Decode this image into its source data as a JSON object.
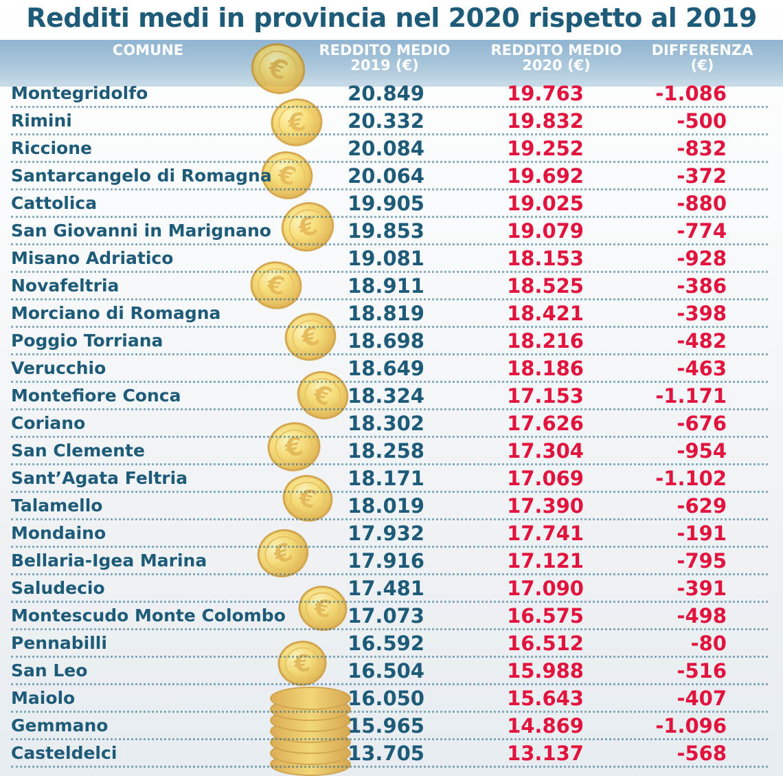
{
  "title": "Redditi medi in provincia nel 2020 rispetto al 2019",
  "header": {
    "comune": "COMUNE",
    "reddito_2019": [
      "REDDITO MEDIO",
      "2019 (€)"
    ],
    "reddito_2020": [
      "REDDITO MEDIO",
      "2020 (€)"
    ],
    "differenza": [
      "DIFFERENZA",
      "(€)"
    ]
  },
  "colors": {
    "title": "#1d5b79",
    "values_2019": "#1d5b79",
    "values_2020": "#e2133d",
    "difference": "#e2133d",
    "header_band": "#9dbdd4"
  },
  "decoration": "euro-coins-icon",
  "chart_data": {
    "type": "table",
    "title": "Redditi medi in provincia nel 2020 rispetto al 2019",
    "columns": [
      "COMUNE",
      "REDDITO MEDIO 2019 (€)",
      "REDDITO MEDIO 2020 (€)",
      "DIFFERENZA (€)"
    ],
    "rows": [
      [
        "Montegridolfo",
        "20.849",
        "19.763",
        "-1.086"
      ],
      [
        "Rimini",
        "20.332",
        "19.832",
        "-500"
      ],
      [
        "Riccione",
        "20.084",
        "19.252",
        "-832"
      ],
      [
        "Santarcangelo di Romagna",
        "20.064",
        "19.692",
        "-372"
      ],
      [
        "Cattolica",
        "19.905",
        "19.025",
        "-880"
      ],
      [
        "San Giovanni in Marignano",
        "19.853",
        "19.079",
        "-774"
      ],
      [
        "Misano Adriatico",
        "19.081",
        "18.153",
        "-928"
      ],
      [
        "Novafeltria",
        "18.911",
        "18.525",
        "-386"
      ],
      [
        "Morciano di Romagna",
        "18.819",
        "18.421",
        "-398"
      ],
      [
        "Poggio Torriana",
        "18.698",
        "18.216",
        "-482"
      ],
      [
        "Verucchio",
        "18.649",
        "18.186",
        "-463"
      ],
      [
        "Montefiore Conca",
        "18.324",
        "17.153",
        "-1.171"
      ],
      [
        "Coriano",
        "18.302",
        "17.626",
        "-676"
      ],
      [
        "San Clemente",
        "18.258",
        "17.304",
        "-954"
      ],
      [
        "Sant’Agata Feltria",
        "18.171",
        "17.069",
        "-1.102"
      ],
      [
        "Talamello",
        "18.019",
        "17.390",
        "-629"
      ],
      [
        "Mondaino",
        "17.932",
        "17.741",
        "-191"
      ],
      [
        "Bellaria-Igea Marina",
        "17.916",
        "17.121",
        "-795"
      ],
      [
        "Saludecio",
        "17.481",
        "17.090",
        "-391"
      ],
      [
        "Montescudo Monte Colombo",
        "17.073",
        "16.575",
        "-498"
      ],
      [
        "Pennabilli",
        "16.592",
        "16.512",
        "-80"
      ],
      [
        "San Leo",
        "16.504",
        "15.988",
        "-516"
      ],
      [
        "Maiolo",
        "16.050",
        "15.643",
        "-407"
      ],
      [
        "Gemmano",
        "15.965",
        "14.869",
        "-1.096"
      ],
      [
        "Casteldelci",
        "13.705",
        "13.137",
        "-568"
      ]
    ]
  }
}
